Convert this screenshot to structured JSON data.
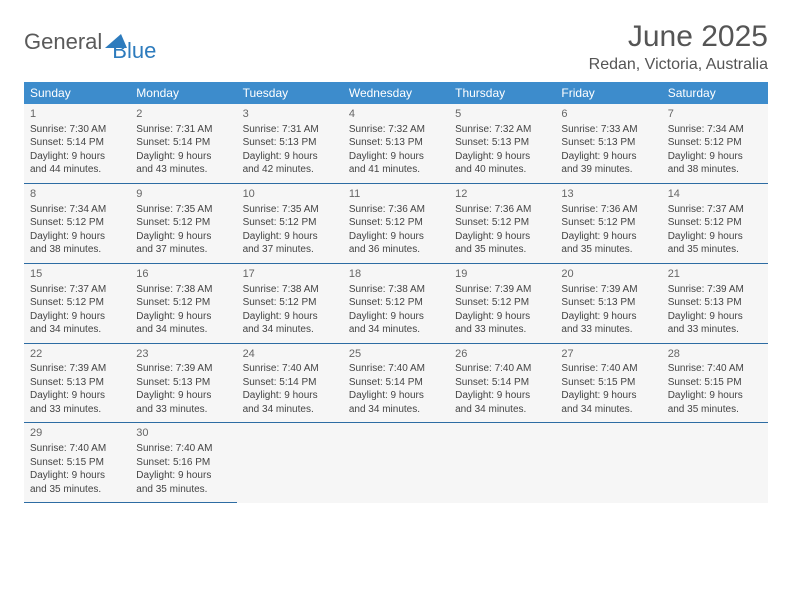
{
  "logo": {
    "text1": "General",
    "text2": "Blue"
  },
  "title": "June 2025",
  "location": "Redan, Victoria, Australia",
  "colors": {
    "header_bg": "#3d8ccc",
    "header_text": "#ffffff",
    "cell_bg": "#f6f6f6",
    "border": "#2d6ca3",
    "logo_gray": "#5a5a5a",
    "logo_blue": "#2d7bbd",
    "title_color": "#555555",
    "text_color": "#444444",
    "page_bg": "#ffffff"
  },
  "fonts": {
    "title_size": 30,
    "location_size": 16,
    "dayheader_size": 12,
    "daynum_size": 11,
    "body_size": 10
  },
  "day_headers": [
    "Sunday",
    "Monday",
    "Tuesday",
    "Wednesday",
    "Thursday",
    "Friday",
    "Saturday"
  ],
  "weeks": [
    [
      {
        "n": "1",
        "sunrise": "Sunrise: 7:30 AM",
        "sunset": "Sunset: 5:14 PM",
        "daylight": "Daylight: 9 hours and 44 minutes."
      },
      {
        "n": "2",
        "sunrise": "Sunrise: 7:31 AM",
        "sunset": "Sunset: 5:14 PM",
        "daylight": "Daylight: 9 hours and 43 minutes."
      },
      {
        "n": "3",
        "sunrise": "Sunrise: 7:31 AM",
        "sunset": "Sunset: 5:13 PM",
        "daylight": "Daylight: 9 hours and 42 minutes."
      },
      {
        "n": "4",
        "sunrise": "Sunrise: 7:32 AM",
        "sunset": "Sunset: 5:13 PM",
        "daylight": "Daylight: 9 hours and 41 minutes."
      },
      {
        "n": "5",
        "sunrise": "Sunrise: 7:32 AM",
        "sunset": "Sunset: 5:13 PM",
        "daylight": "Daylight: 9 hours and 40 minutes."
      },
      {
        "n": "6",
        "sunrise": "Sunrise: 7:33 AM",
        "sunset": "Sunset: 5:13 PM",
        "daylight": "Daylight: 9 hours and 39 minutes."
      },
      {
        "n": "7",
        "sunrise": "Sunrise: 7:34 AM",
        "sunset": "Sunset: 5:12 PM",
        "daylight": "Daylight: 9 hours and 38 minutes."
      }
    ],
    [
      {
        "n": "8",
        "sunrise": "Sunrise: 7:34 AM",
        "sunset": "Sunset: 5:12 PM",
        "daylight": "Daylight: 9 hours and 38 minutes."
      },
      {
        "n": "9",
        "sunrise": "Sunrise: 7:35 AM",
        "sunset": "Sunset: 5:12 PM",
        "daylight": "Daylight: 9 hours and 37 minutes."
      },
      {
        "n": "10",
        "sunrise": "Sunrise: 7:35 AM",
        "sunset": "Sunset: 5:12 PM",
        "daylight": "Daylight: 9 hours and 37 minutes."
      },
      {
        "n": "11",
        "sunrise": "Sunrise: 7:36 AM",
        "sunset": "Sunset: 5:12 PM",
        "daylight": "Daylight: 9 hours and 36 minutes."
      },
      {
        "n": "12",
        "sunrise": "Sunrise: 7:36 AM",
        "sunset": "Sunset: 5:12 PM",
        "daylight": "Daylight: 9 hours and 35 minutes."
      },
      {
        "n": "13",
        "sunrise": "Sunrise: 7:36 AM",
        "sunset": "Sunset: 5:12 PM",
        "daylight": "Daylight: 9 hours and 35 minutes."
      },
      {
        "n": "14",
        "sunrise": "Sunrise: 7:37 AM",
        "sunset": "Sunset: 5:12 PM",
        "daylight": "Daylight: 9 hours and 35 minutes."
      }
    ],
    [
      {
        "n": "15",
        "sunrise": "Sunrise: 7:37 AM",
        "sunset": "Sunset: 5:12 PM",
        "daylight": "Daylight: 9 hours and 34 minutes."
      },
      {
        "n": "16",
        "sunrise": "Sunrise: 7:38 AM",
        "sunset": "Sunset: 5:12 PM",
        "daylight": "Daylight: 9 hours and 34 minutes."
      },
      {
        "n": "17",
        "sunrise": "Sunrise: 7:38 AM",
        "sunset": "Sunset: 5:12 PM",
        "daylight": "Daylight: 9 hours and 34 minutes."
      },
      {
        "n": "18",
        "sunrise": "Sunrise: 7:38 AM",
        "sunset": "Sunset: 5:12 PM",
        "daylight": "Daylight: 9 hours and 34 minutes."
      },
      {
        "n": "19",
        "sunrise": "Sunrise: 7:39 AM",
        "sunset": "Sunset: 5:12 PM",
        "daylight": "Daylight: 9 hours and 33 minutes."
      },
      {
        "n": "20",
        "sunrise": "Sunrise: 7:39 AM",
        "sunset": "Sunset: 5:13 PM",
        "daylight": "Daylight: 9 hours and 33 minutes."
      },
      {
        "n": "21",
        "sunrise": "Sunrise: 7:39 AM",
        "sunset": "Sunset: 5:13 PM",
        "daylight": "Daylight: 9 hours and 33 minutes."
      }
    ],
    [
      {
        "n": "22",
        "sunrise": "Sunrise: 7:39 AM",
        "sunset": "Sunset: 5:13 PM",
        "daylight": "Daylight: 9 hours and 33 minutes."
      },
      {
        "n": "23",
        "sunrise": "Sunrise: 7:39 AM",
        "sunset": "Sunset: 5:13 PM",
        "daylight": "Daylight: 9 hours and 33 minutes."
      },
      {
        "n": "24",
        "sunrise": "Sunrise: 7:40 AM",
        "sunset": "Sunset: 5:14 PM",
        "daylight": "Daylight: 9 hours and 34 minutes."
      },
      {
        "n": "25",
        "sunrise": "Sunrise: 7:40 AM",
        "sunset": "Sunset: 5:14 PM",
        "daylight": "Daylight: 9 hours and 34 minutes."
      },
      {
        "n": "26",
        "sunrise": "Sunrise: 7:40 AM",
        "sunset": "Sunset: 5:14 PM",
        "daylight": "Daylight: 9 hours and 34 minutes."
      },
      {
        "n": "27",
        "sunrise": "Sunrise: 7:40 AM",
        "sunset": "Sunset: 5:15 PM",
        "daylight": "Daylight: 9 hours and 34 minutes."
      },
      {
        "n": "28",
        "sunrise": "Sunrise: 7:40 AM",
        "sunset": "Sunset: 5:15 PM",
        "daylight": "Daylight: 9 hours and 35 minutes."
      }
    ],
    [
      {
        "n": "29",
        "sunrise": "Sunrise: 7:40 AM",
        "sunset": "Sunset: 5:15 PM",
        "daylight": "Daylight: 9 hours and 35 minutes."
      },
      {
        "n": "30",
        "sunrise": "Sunrise: 7:40 AM",
        "sunset": "Sunset: 5:16 PM",
        "daylight": "Daylight: 9 hours and 35 minutes."
      },
      null,
      null,
      null,
      null,
      null
    ]
  ]
}
